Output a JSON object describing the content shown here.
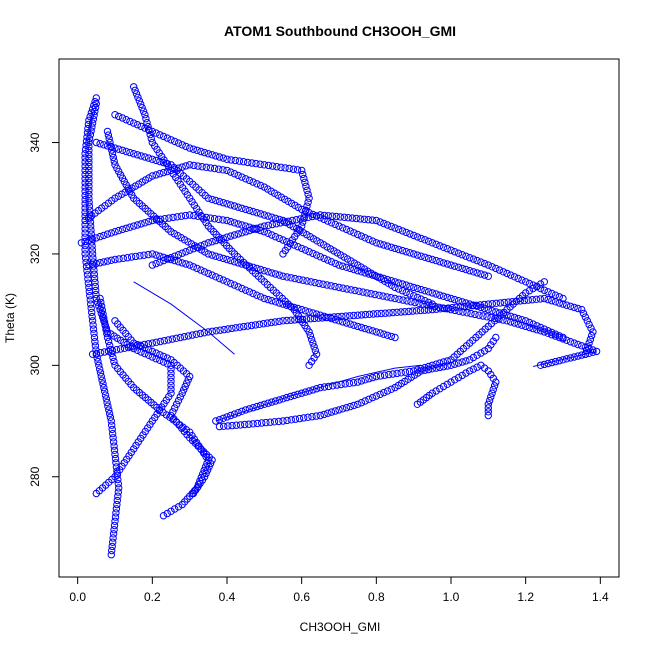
{
  "chart_data": {
    "type": "scatter",
    "title": "ATOM1 Southbound CH3OOH_GMI",
    "xlabel": "CH3OOH_GMI",
    "ylabel": "Theta (K)",
    "xlim": [
      -0.05,
      1.45
    ],
    "ylim": [
      262,
      355
    ],
    "x_ticks": [
      "0.0",
      "0.2",
      "0.4",
      "0.6",
      "0.8",
      "1.0",
      "1.2",
      "1.4"
    ],
    "y_ticks": [
      "280",
      "300",
      "320",
      "340"
    ],
    "grid": false,
    "marker": "open-circle",
    "color": "#0000ff",
    "profiles": [
      [
        [
          0.09,
          266
        ],
        [
          0.1,
          272
        ],
        [
          0.11,
          278
        ],
        [
          0.1,
          284
        ],
        [
          0.09,
          290
        ],
        [
          0.07,
          296
        ],
        [
          0.05,
          302
        ],
        [
          0.04,
          308
        ],
        [
          0.03,
          314
        ],
        [
          0.02,
          320
        ],
        [
          0.02,
          326
        ],
        [
          0.02,
          332
        ],
        [
          0.02,
          338
        ],
        [
          0.03,
          344
        ],
        [
          0.05,
          348
        ]
      ],
      [
        [
          0.05,
          277
        ],
        [
          0.1,
          280
        ],
        [
          0.15,
          285
        ],
        [
          0.2,
          290
        ],
        [
          0.25,
          295
        ],
        [
          0.25,
          300
        ],
        [
          0.15,
          303
        ],
        [
          0.08,
          306
        ],
        [
          0.05,
          312
        ],
        [
          0.04,
          320
        ],
        [
          0.03,
          330
        ],
        [
          0.03,
          340
        ],
        [
          0.05,
          347
        ]
      ],
      [
        [
          0.23,
          273
        ],
        [
          0.28,
          275
        ],
        [
          0.32,
          278
        ],
        [
          0.35,
          283
        ],
        [
          0.3,
          288
        ],
        [
          0.22,
          292
        ],
        [
          0.15,
          296
        ],
        [
          0.1,
          300
        ],
        [
          0.08,
          305
        ],
        [
          0.06,
          312
        ]
      ],
      [
        [
          0.31,
          277
        ],
        [
          0.34,
          280
        ],
        [
          0.36,
          283
        ],
        [
          0.3,
          287
        ],
        [
          0.25,
          291
        ],
        [
          0.28,
          295
        ],
        [
          0.3,
          298
        ],
        [
          0.25,
          301
        ],
        [
          0.15,
          304
        ],
        [
          0.1,
          308
        ]
      ],
      [
        [
          0.38,
          289
        ],
        [
          0.47,
          289.5
        ],
        [
          0.55,
          290
        ],
        [
          0.65,
          291
        ],
        [
          0.75,
          293
        ],
        [
          0.85,
          296
        ],
        [
          0.92,
          299
        ],
        [
          1.0,
          300
        ],
        [
          1.05,
          301
        ],
        [
          1.1,
          303
        ],
        [
          1.12,
          305
        ]
      ],
      [
        [
          0.91,
          293
        ],
        [
          0.95,
          295
        ],
        [
          1.0,
          297
        ],
        [
          1.05,
          299
        ],
        [
          1.08,
          300
        ],
        [
          1.1,
          299
        ],
        [
          1.12,
          297
        ],
        [
          1.1,
          293
        ],
        [
          1.1,
          291
        ]
      ],
      [
        [
          0.37,
          290
        ],
        [
          0.45,
          292
        ],
        [
          0.55,
          294
        ],
        [
          0.65,
          296
        ],
        [
          0.75,
          297
        ],
        [
          0.8,
          298
        ],
        [
          0.9,
          299
        ],
        [
          1.0,
          301
        ],
        [
          1.05,
          304
        ],
        [
          1.1,
          307
        ],
        [
          1.15,
          310
        ],
        [
          1.2,
          313
        ],
        [
          1.25,
          315
        ]
      ],
      [
        [
          0.62,
          300
        ],
        [
          0.64,
          302
        ],
        [
          0.62,
          306
        ],
        [
          0.58,
          310
        ],
        [
          0.5,
          315
        ],
        [
          0.42,
          320
        ],
        [
          0.35,
          325
        ],
        [
          0.3,
          330
        ],
        [
          0.25,
          335
        ],
        [
          0.2,
          340
        ],
        [
          0.18,
          345
        ],
        [
          0.15,
          350
        ]
      ],
      [
        [
          0.04,
          302
        ],
        [
          0.2,
          304
        ],
        [
          0.35,
          306
        ],
        [
          0.55,
          308
        ],
        [
          0.75,
          309
        ],
        [
          0.95,
          310
        ],
        [
          1.1,
          311
        ],
        [
          1.25,
          312
        ],
        [
          1.35,
          310
        ],
        [
          1.38,
          306
        ],
        [
          1.36,
          302
        ]
      ],
      [
        [
          1.24,
          300
        ],
        [
          1.3,
          301
        ],
        [
          1.39,
          302.5
        ],
        [
          1.33,
          304
        ],
        [
          1.25,
          306
        ],
        [
          1.15,
          308
        ],
        [
          1.0,
          310
        ],
        [
          0.85,
          312
        ],
        [
          0.7,
          314
        ],
        [
          0.55,
          316
        ],
        [
          0.45,
          318
        ],
        [
          0.35,
          320
        ],
        [
          0.25,
          324
        ],
        [
          0.15,
          330
        ],
        [
          0.1,
          336
        ],
        [
          0.08,
          342
        ]
      ],
      [
        [
          0.2,
          318
        ],
        [
          0.35,
          322
        ],
        [
          0.5,
          325
        ],
        [
          0.65,
          327
        ],
        [
          0.8,
          326
        ],
        [
          0.95,
          322
        ],
        [
          1.1,
          318
        ],
        [
          1.2,
          315
        ],
        [
          1.3,
          312
        ]
      ],
      [
        [
          0.1,
          345
        ],
        [
          0.2,
          342
        ],
        [
          0.3,
          339
        ],
        [
          0.4,
          337
        ],
        [
          0.5,
          336
        ],
        [
          0.6,
          335
        ],
        [
          0.62,
          330
        ],
        [
          0.6,
          325
        ],
        [
          0.55,
          320
        ]
      ],
      [
        [
          0.02,
          326
        ],
        [
          0.1,
          330
        ],
        [
          0.2,
          334
        ],
        [
          0.3,
          336
        ],
        [
          0.4,
          335
        ],
        [
          0.5,
          332
        ],
        [
          0.6,
          328
        ],
        [
          0.7,
          325
        ],
        [
          0.8,
          322
        ],
        [
          0.9,
          320
        ],
        [
          1.0,
          318
        ],
        [
          1.1,
          316
        ]
      ],
      [
        [
          0.01,
          322
        ],
        [
          0.1,
          324
        ],
        [
          0.2,
          326
        ],
        [
          0.3,
          327
        ],
        [
          0.4,
          326
        ],
        [
          0.5,
          324
        ],
        [
          0.6,
          321
        ],
        [
          0.7,
          318
        ],
        [
          0.8,
          316
        ],
        [
          0.9,
          314
        ],
        [
          1.0,
          312
        ],
        [
          1.1,
          310
        ],
        [
          1.2,
          308
        ],
        [
          1.3,
          305
        ]
      ],
      [
        [
          0.03,
          318
        ],
        [
          0.1,
          319
        ],
        [
          0.2,
          320
        ],
        [
          0.3,
          318
        ],
        [
          0.4,
          315
        ],
        [
          0.5,
          312
        ],
        [
          0.6,
          310
        ],
        [
          0.7,
          308
        ],
        [
          0.8,
          306
        ],
        [
          0.85,
          305
        ]
      ],
      [
        [
          0.05,
          340
        ],
        [
          0.15,
          338
        ],
        [
          0.25,
          336
        ],
        [
          0.3,
          333
        ],
        [
          0.35,
          330
        ],
        [
          0.45,
          328
        ],
        [
          0.55,
          326
        ],
        [
          0.65,
          322
        ],
        [
          0.75,
          318
        ],
        [
          0.85,
          314
        ],
        [
          0.95,
          311
        ]
      ]
    ],
    "reference_lines": [
      [
        [
          0.37,
          290
        ],
        [
          0.57,
          294.5
        ],
        [
          0.75,
          298
        ],
        [
          0.85,
          299.5
        ],
        [
          0.92,
          300
        ]
      ],
      [
        [
          1.22,
          299.8
        ],
        [
          1.39,
          302.5
        ]
      ],
      [
        [
          0.15,
          315
        ],
        [
          0.25,
          311
        ],
        [
          0.35,
          306
        ],
        [
          0.42,
          302
        ]
      ]
    ]
  }
}
